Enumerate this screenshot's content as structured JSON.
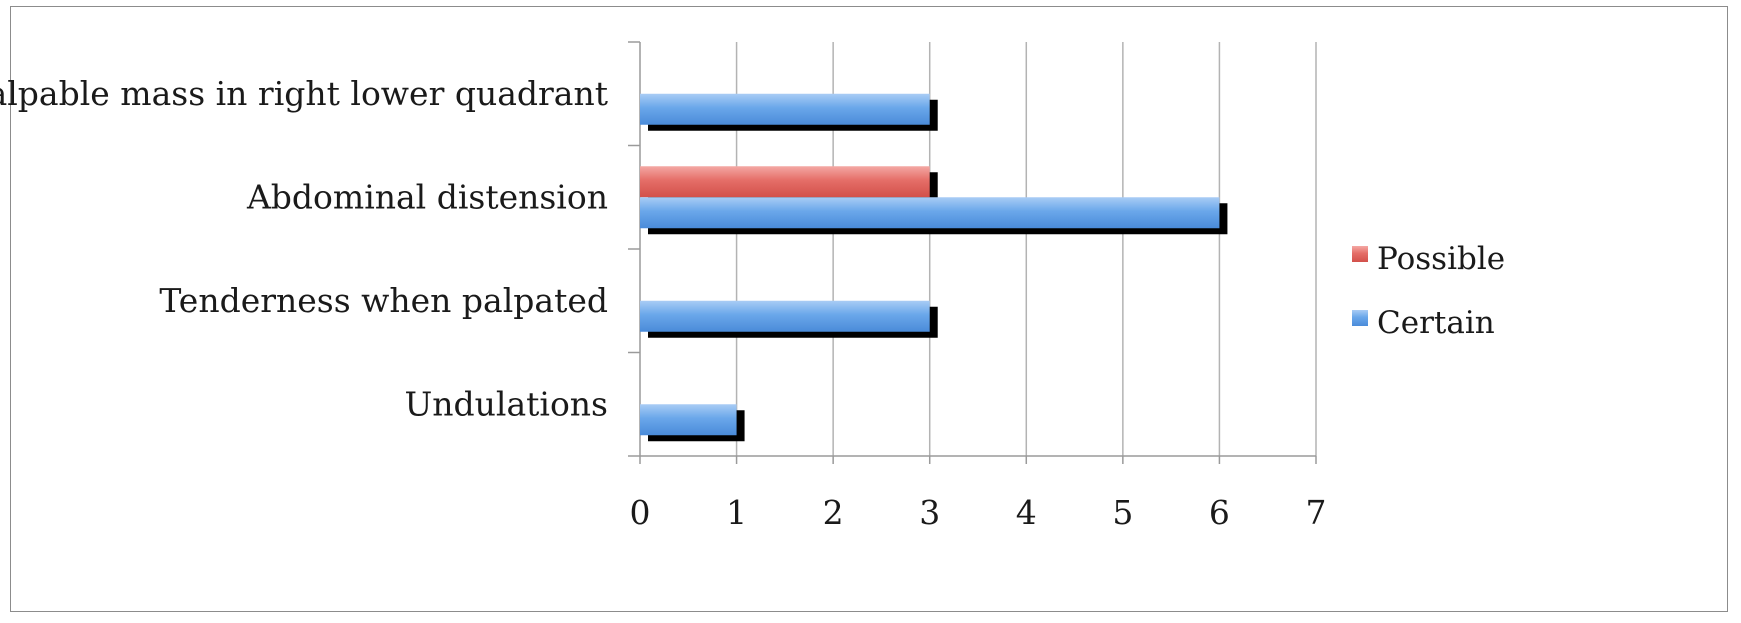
{
  "chart_data": {
    "type": "bar",
    "orientation": "horizontal",
    "categories": [
      "Palpable mass in right lower quadrant",
      "Abdominal distension",
      "Tenderness when palpated",
      "Undulations"
    ],
    "series": [
      {
        "name": "Possible",
        "color": "#e0605a",
        "values": [
          0,
          3,
          0,
          0
        ]
      },
      {
        "name": "Certain",
        "color": "#5b9be3",
        "values": [
          3,
          6,
          3,
          1
        ]
      }
    ],
    "xlim": [
      0,
      7
    ],
    "xticks": [
      "0",
      "1",
      "2",
      "3",
      "4",
      "5",
      "6",
      "7"
    ],
    "grid": true,
    "legend_position": "right"
  }
}
